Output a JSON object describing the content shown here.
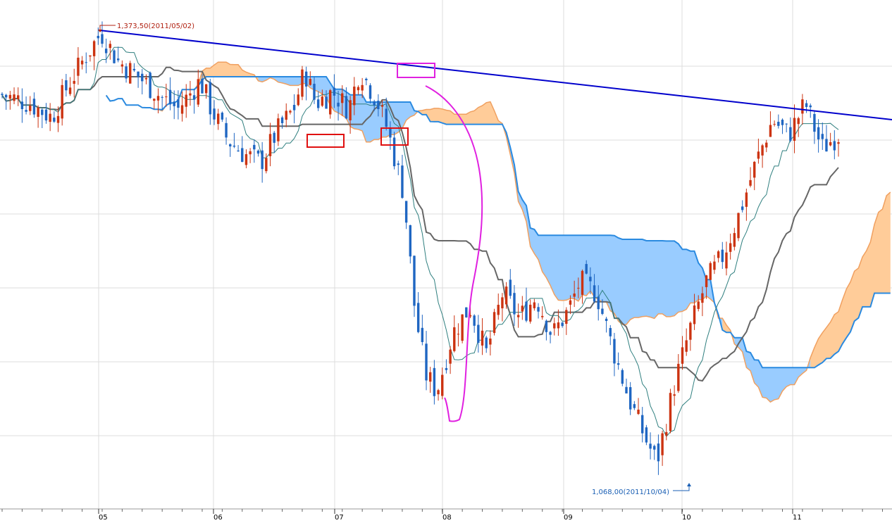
{
  "chart_data": {
    "type": "candlestick",
    "title": "",
    "xlabel": "",
    "ylabel": "",
    "x_tick_labels": [
      "05",
      "06",
      "07",
      "08",
      "09",
      "10",
      "11"
    ],
    "y_axis_labels_visible": false,
    "ylim": [
      1035,
      1395
    ],
    "grid": true,
    "annotations": {
      "high": {
        "label": "1,373,50(2011/05/02)",
        "value": 1373.5,
        "date": "2011/05/02"
      },
      "low": {
        "label": "1,068,00(2011/10/04)",
        "value": 1068.0,
        "date": "2011/10/04"
      }
    },
    "trendline": {
      "color": "#0000cc",
      "from_value": 1373.5,
      "description": "descending resistance line from the May high"
    },
    "colors": {
      "up_candle": "#cc3311",
      "down_candle": "#1f66c2",
      "cloud_bullish": "#ffcc99",
      "cloud_bearish": "#99ccff",
      "span_b": "#2a8ae0",
      "kijun": "#666666",
      "tenkan": "#2f7f7f",
      "trendline": "#0000cc",
      "highlight_box_red": "#e01010",
      "highlight_box_magenta": "#e020e0"
    },
    "series": [
      {
        "name": "price",
        "kind": "candles",
        "sample_closes": [
          1335,
          1345,
          1365,
          1352,
          1340,
          1330,
          1318,
          1325,
          1340,
          1326,
          1305,
          1282,
          1276,
          1300,
          1316,
          1332,
          1346,
          1320,
          1290,
          1282,
          1190,
          1140,
          1118,
          1152,
          1196,
          1202,
          1178,
          1168,
          1165,
          1200,
          1142,
          1098,
          1075,
          1120,
          1176,
          1208,
          1262,
          1290,
          1318,
          1300
        ]
      },
      {
        "name": "tenkan",
        "kind": "line"
      },
      {
        "name": "kijun",
        "kind": "line"
      },
      {
        "name": "span_a",
        "kind": "line"
      },
      {
        "name": "span_b",
        "kind": "line"
      }
    ]
  }
}
